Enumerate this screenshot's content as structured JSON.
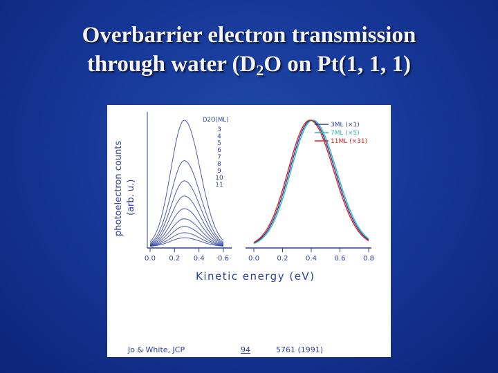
{
  "title": {
    "line1": "Overbarrier electron transmission",
    "line2_prefix": "through water (D",
    "line2_sub": "2",
    "line2_suffix": "O on Pt(1, 1, 1)"
  },
  "colors": {
    "background": "#17399a",
    "title_text": "#f4f4f4",
    "ink": "#2b3fa0",
    "red": "#e02020",
    "cyan": "#2fb9b0"
  },
  "chart_data": [
    {
      "type": "line",
      "ylabel": "photoelectron counts",
      "ylabel_unit": "(arb. u.)",
      "xlabel": "Kinetic energy (eV)",
      "xlim": [
        0,
        0.6
      ],
      "xticks": [
        "0.0",
        "0.2",
        "0.4",
        "0.6"
      ],
      "legend_title": "D2O(ML)",
      "legend_items": [
        "3",
        "4",
        "5",
        "6",
        "7",
        "8",
        "9",
        "10",
        "11"
      ],
      "peak_x": 0.28,
      "series": [
        {
          "name": "3",
          "peak": 1.0
        },
        {
          "name": "4",
          "peak": 0.68
        },
        {
          "name": "5",
          "peak": 0.52
        },
        {
          "name": "6",
          "peak": 0.4
        },
        {
          "name": "7",
          "peak": 0.3
        },
        {
          "name": "8",
          "peak": 0.22
        },
        {
          "name": "9",
          "peak": 0.16
        },
        {
          "name": "10",
          "peak": 0.11
        },
        {
          "name": "11",
          "peak": 0.07
        }
      ]
    },
    {
      "type": "line",
      "xlim": [
        0,
        0.8
      ],
      "xticks": [
        "0.0",
        "0.2",
        "0.4",
        "0.6",
        "0.8"
      ],
      "series": [
        {
          "name": "3ML (×1)",
          "color": "#2b3fa0",
          "peak_x": 0.4
        },
        {
          "name": "7ML (×5)",
          "color": "#2fb9b0",
          "peak_x": 0.41
        },
        {
          "name": "11ML (×31)",
          "color": "#e02020",
          "peak_x": 0.39
        }
      ]
    }
  ],
  "citation": {
    "authors": "Jo & White, JCP",
    "volume": "94",
    "pages": "5761 (1991)"
  }
}
